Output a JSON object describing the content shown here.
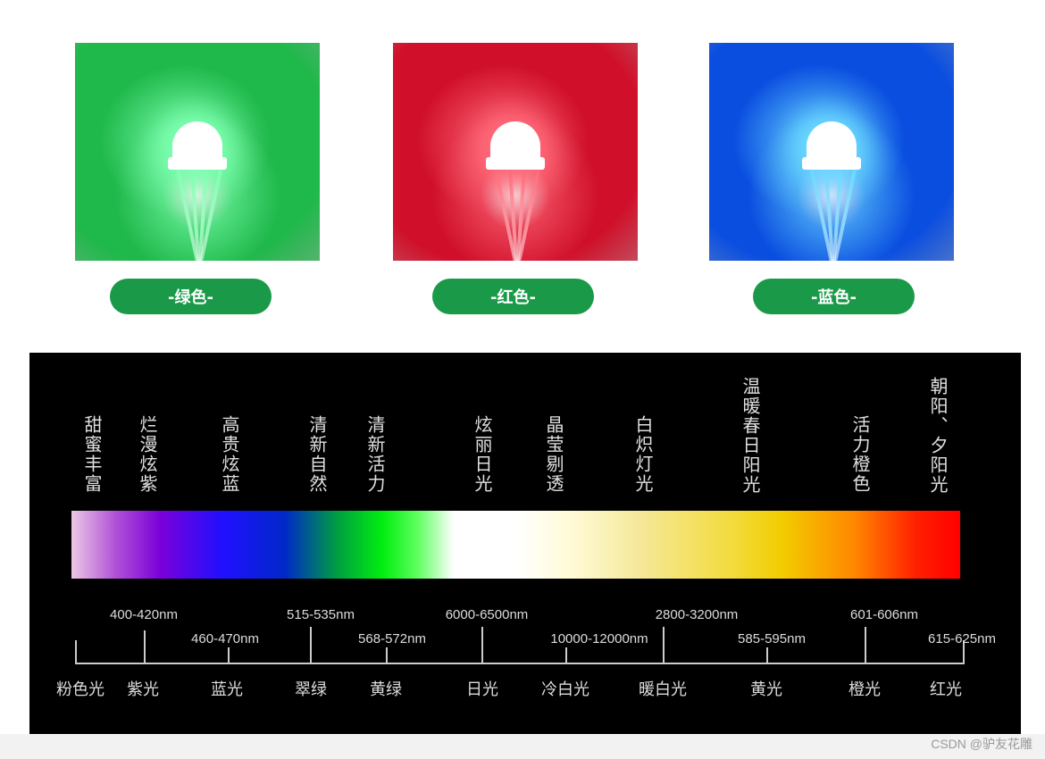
{
  "products": [
    {
      "label": "-绿色-",
      "color": "#1fb84a",
      "glow": "#7dffb0"
    },
    {
      "label": "-红色-",
      "color": "#d0102a",
      "glow": "#ff6a7a"
    },
    {
      "label": "-蓝色-",
      "color": "#0a4ee0",
      "glow": "#6ad8ff"
    }
  ],
  "pill_color": "#1a9a48",
  "descriptors": [
    "甜蜜丰富",
    "烂漫炫紫",
    "高贵炫蓝",
    "清新自然",
    "清新活力",
    "炫丽日光",
    "晶莹剔透",
    "白炽灯光",
    "温暖春日阳光",
    "活力橙色",
    "朝阳、夕阳光"
  ],
  "ranges_upper": [
    "400-420nm",
    "515-535nm",
    "6000-6500nm",
    "2800-3200nm",
    "601-606nm"
  ],
  "ranges_lower": [
    "460-470nm",
    "568-572nm",
    "10000-12000nm",
    "585-595nm",
    "615-625nm"
  ],
  "light_names": [
    "粉色光",
    "紫光",
    "蓝光",
    "翠绿",
    "黄绿",
    "日光",
    "冷白光",
    "暖白光",
    "黄光",
    "橙光",
    "红光"
  ],
  "watermark": "CSDN @驴友花雕"
}
